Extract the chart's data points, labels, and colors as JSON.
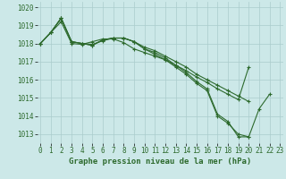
{
  "background_color": "#cce8e8",
  "grid_color": "#aacccc",
  "line_color": "#2d6a2d",
  "series": [
    {
      "x": [
        0,
        1,
        2,
        3,
        4,
        5,
        6,
        7,
        8,
        9,
        10,
        11,
        12,
        13,
        14,
        15,
        16,
        17,
        18,
        19,
        20,
        21,
        22
      ],
      "y": [
        1018.0,
        1018.6,
        1019.4,
        1018.1,
        1018.0,
        1017.9,
        1018.2,
        1018.3,
        1018.3,
        1018.1,
        1017.7,
        1017.4,
        1017.1,
        1016.7,
        1016.3,
        1015.8,
        1015.4,
        1014.0,
        1013.6,
        1013.0,
        1012.85,
        1014.4,
        1015.2
      ]
    },
    {
      "x": [
        0,
        1,
        2,
        3,
        4,
        5,
        6,
        7,
        8,
        9,
        10,
        11,
        12,
        13,
        14,
        15,
        16,
        17,
        18,
        19,
        20
      ],
      "y": [
        1018.0,
        1018.6,
        1019.4,
        1018.1,
        1018.0,
        1017.95,
        1018.15,
        1018.3,
        1018.3,
        1018.1,
        1017.7,
        1017.5,
        1017.2,
        1016.8,
        1016.4,
        1015.9,
        1015.5,
        1014.1,
        1013.7,
        1012.85,
        1012.85
      ]
    },
    {
      "x": [
        0,
        1,
        2,
        3,
        4,
        5,
        6,
        7,
        8,
        9,
        10,
        11,
        12,
        13,
        14,
        15,
        16,
        17,
        18,
        19,
        20
      ],
      "y": [
        1018.0,
        1018.6,
        1019.4,
        1018.1,
        1018.0,
        1017.9,
        1018.2,
        1018.3,
        1018.3,
        1018.1,
        1017.8,
        1017.6,
        1017.3,
        1017.0,
        1016.7,
        1016.3,
        1016.0,
        1015.7,
        1015.4,
        1015.1,
        1014.8
      ]
    },
    {
      "x": [
        0,
        1,
        2,
        3,
        4,
        5,
        6,
        7,
        8,
        9,
        10,
        11,
        12,
        13,
        14,
        15,
        16,
        17,
        18,
        19,
        20
      ],
      "y": [
        1018.0,
        1018.6,
        1019.2,
        1018.0,
        1017.95,
        1018.1,
        1018.25,
        1018.25,
        1018.05,
        1017.7,
        1017.5,
        1017.3,
        1017.1,
        1016.8,
        1016.5,
        1016.15,
        1015.85,
        1015.5,
        1015.2,
        1014.9,
        1016.7
      ]
    }
  ],
  "ylim": [
    1012.5,
    1020.3
  ],
  "xlim": [
    -0.3,
    23.3
  ],
  "yticks": [
    1013,
    1014,
    1015,
    1016,
    1017,
    1018,
    1019,
    1020
  ],
  "xticks": [
    0,
    1,
    2,
    3,
    4,
    5,
    6,
    7,
    8,
    9,
    10,
    11,
    12,
    13,
    14,
    15,
    16,
    17,
    18,
    19,
    20,
    21,
    22,
    23
  ],
  "xlabel": "Graphe pression niveau de la mer (hPa)",
  "marker": "+",
  "markersize": 3,
  "linewidth": 0.8,
  "tick_fontsize": 5.5,
  "xlabel_fontsize": 6.5
}
